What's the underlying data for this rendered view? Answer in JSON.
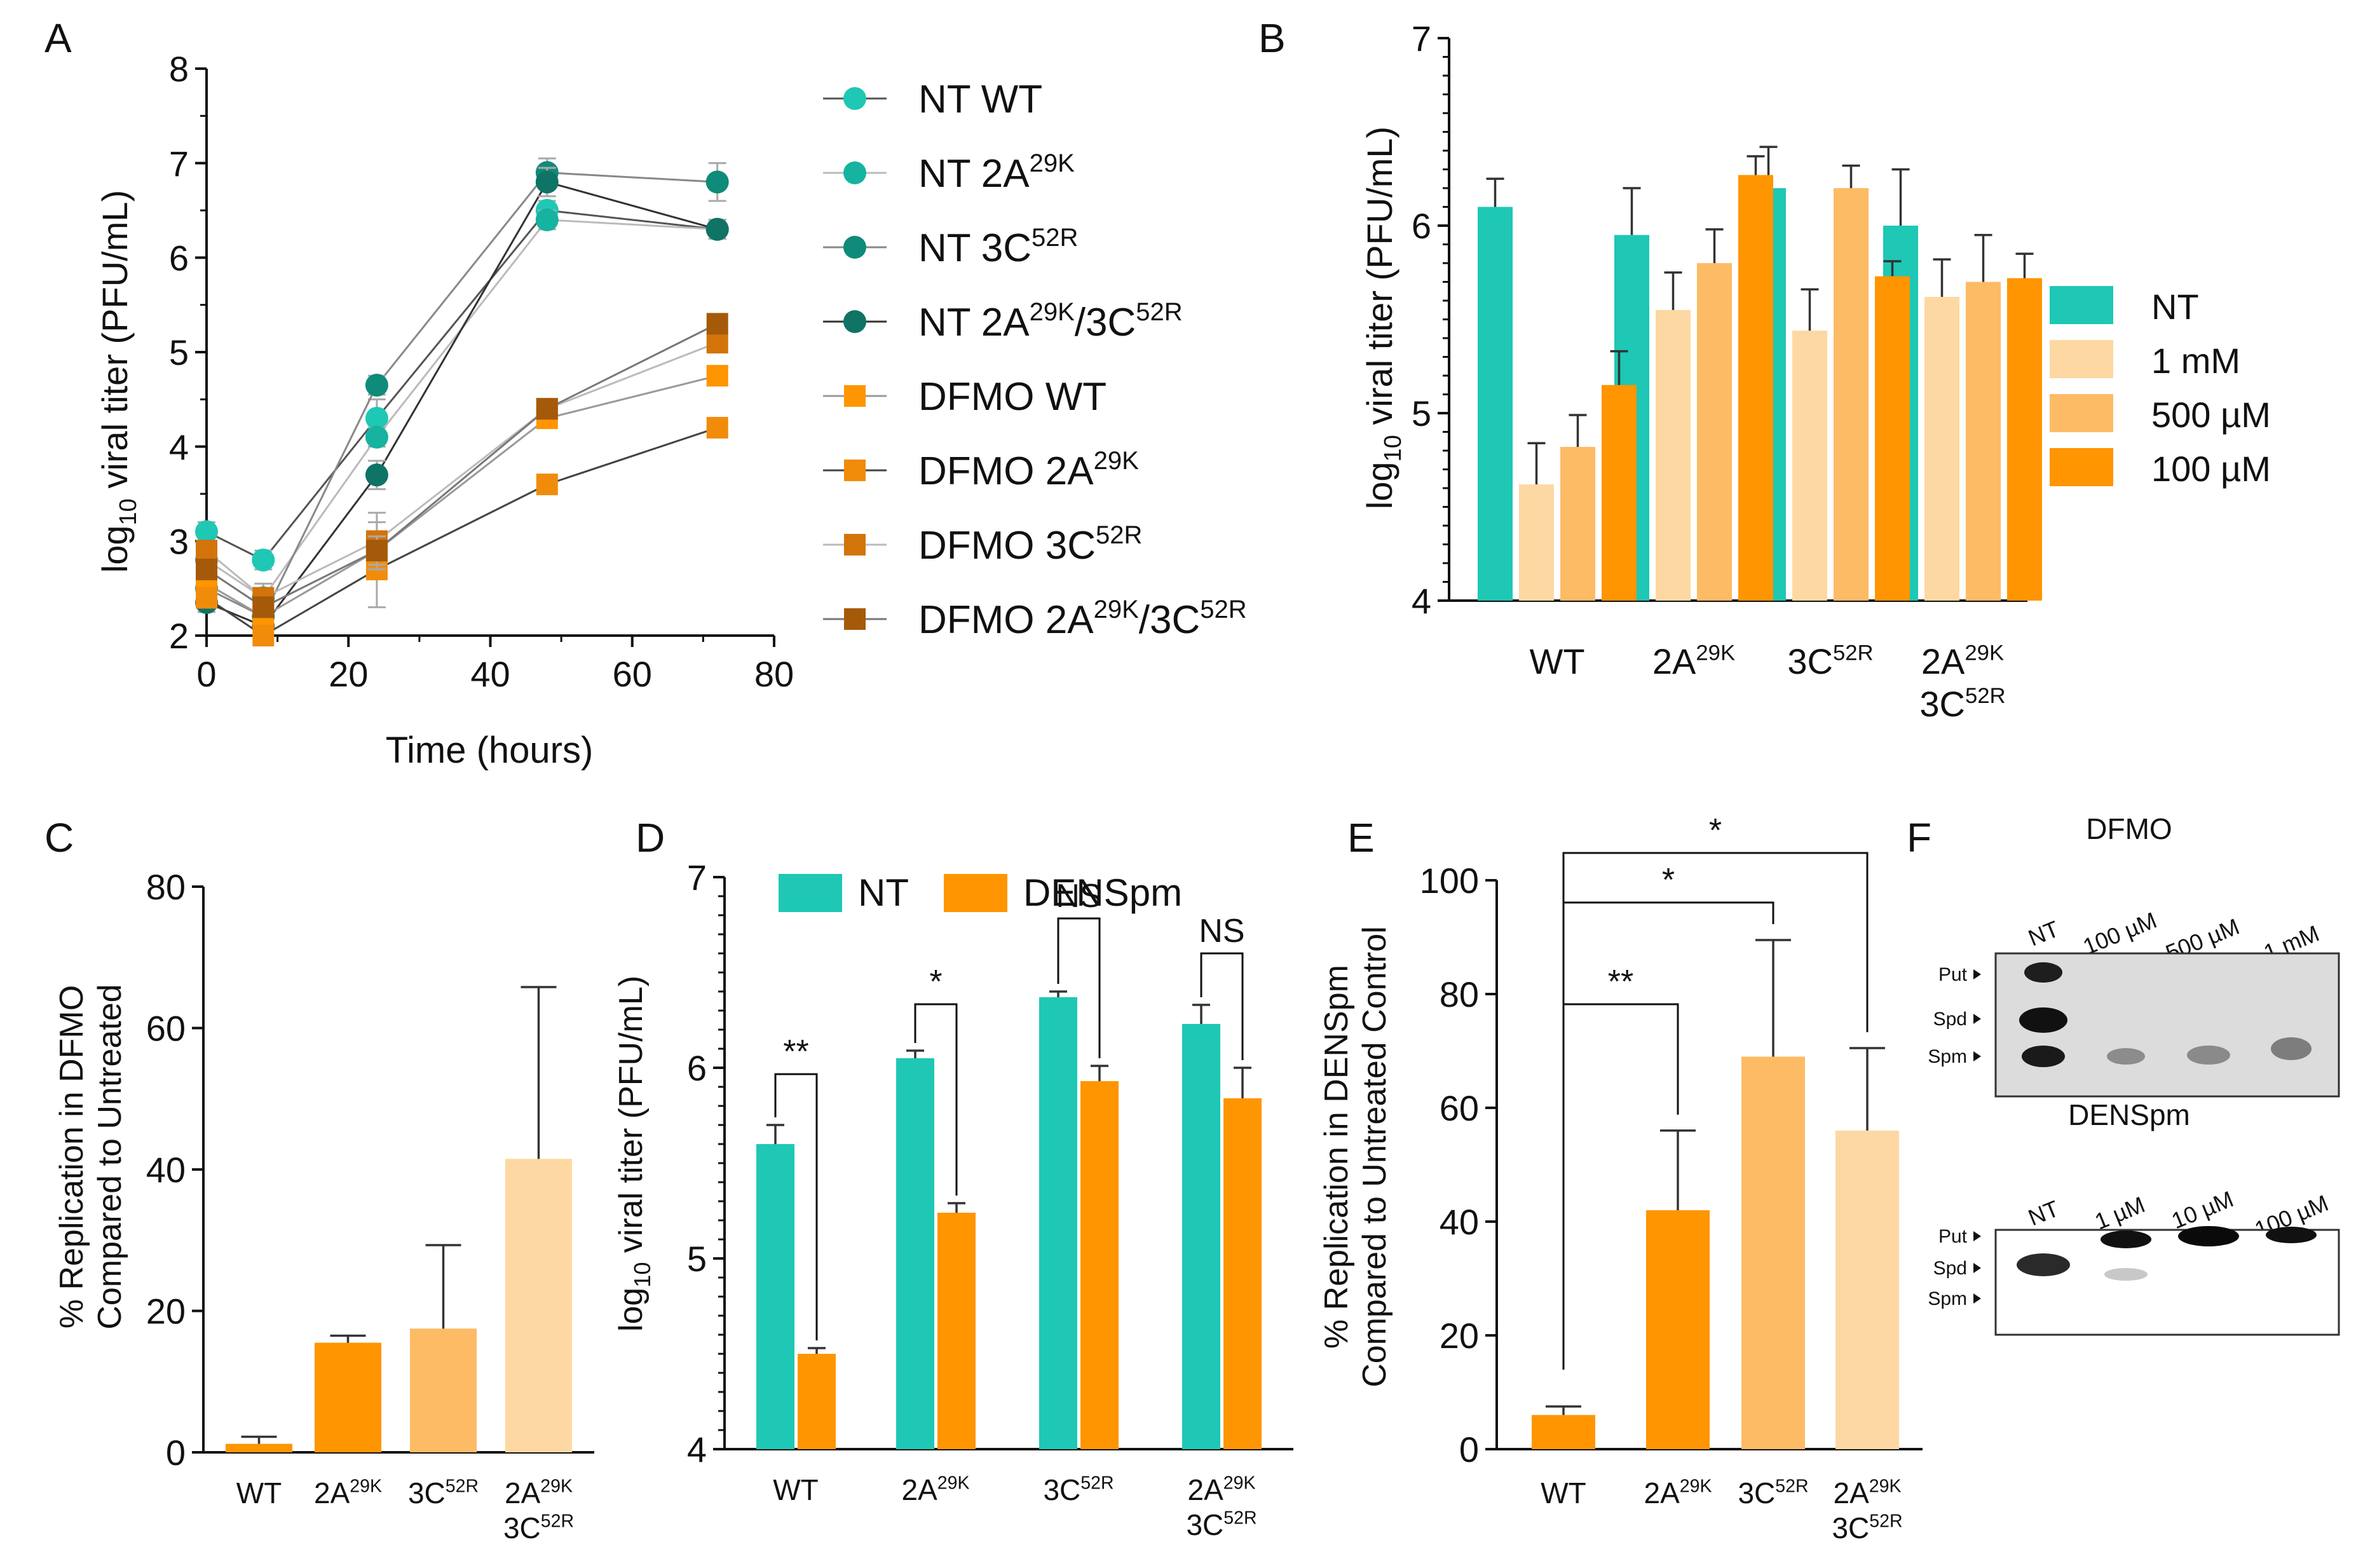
{
  "colors": {
    "teal": "#1ec8b4",
    "teal_mid": "#15b3a0",
    "teal_dark": "#108a7a",
    "teal_darker": "#0f7366",
    "orange": "#ff9500",
    "orange_mid": "#f08c0a",
    "orange_dark": "#d2740a",
    "brown": "#a55a0a",
    "light1": "#fdd8a2",
    "light2": "#fdbb65",
    "gray_line": "#b4b4b4"
  },
  "chart_data": [
    {
      "panel": "A",
      "type": "line",
      "title": "",
      "xlabel": "Time (hours)",
      "ylabel": "log10 viral titer (PFU/mL)",
      "xlim": [
        0,
        80
      ],
      "ylim": [
        2,
        8
      ],
      "xticks": [
        "0",
        "20",
        "40",
        "60",
        "80"
      ],
      "yticks": [
        "2",
        "3",
        "4",
        "5",
        "6",
        "7",
        "8"
      ],
      "x": [
        0,
        8,
        24,
        48,
        72
      ],
      "series": [
        {
          "name": "NT WT",
          "values": [
            3.1,
            2.8,
            4.3,
            6.5,
            6.3
          ],
          "errors": [
            0.1,
            0.1,
            0.2,
            0.1,
            0.1
          ],
          "marker": "circle"
        },
        {
          "name": "NT 2A29K",
          "values": [
            2.8,
            2.4,
            4.1,
            6.4,
            6.3
          ],
          "errors": [
            0.1,
            0.15,
            0.1,
            0.1,
            0.1
          ],
          "marker": "circle"
        },
        {
          "name": "NT 3C52R",
          "values": [
            2.5,
            2.2,
            4.65,
            6.9,
            6.8
          ],
          "errors": [
            0.1,
            0.1,
            0.1,
            0.15,
            0.2
          ],
          "marker": "circle"
        },
        {
          "name": "NT 2A29K/3C52R",
          "values": [
            2.35,
            2.1,
            3.7,
            6.8,
            6.3
          ],
          "errors": [
            0.1,
            0.1,
            0.15,
            0.15,
            0.1
          ],
          "marker": "circle"
        },
        {
          "name": "DFMO WT",
          "values": [
            2.55,
            2.2,
            2.9,
            4.3,
            4.75
          ],
          "errors": [
            0.1,
            0.15,
            0.3,
            0.1,
            0.1
          ],
          "marker": "square"
        },
        {
          "name": "DFMO 2A29K",
          "values": [
            2.4,
            2.0,
            2.7,
            3.6,
            4.2
          ],
          "errors": [
            0.1,
            0.1,
            0.4,
            0.1,
            0.1
          ],
          "marker": "square"
        },
        {
          "name": "DFMO 3C52R",
          "values": [
            2.9,
            2.4,
            3.0,
            4.4,
            5.1
          ],
          "errors": [
            0.1,
            0.1,
            0.3,
            0.1,
            0.1
          ],
          "marker": "square"
        },
        {
          "name": "DFMO 2A29K/3C52R",
          "values": [
            2.7,
            2.3,
            2.9,
            4.4,
            5.3
          ],
          "errors": [
            0.1,
            0.1,
            0.15,
            0.1,
            0.1
          ],
          "marker": "square"
        }
      ],
      "legend": [
        {
          "base": "NT WT",
          "sup": "",
          "mid": "",
          "sup2": ""
        },
        {
          "base": "NT 2A",
          "sup": "29K",
          "mid": "",
          "sup2": ""
        },
        {
          "base": "NT 3C",
          "sup": "52R",
          "mid": "",
          "sup2": ""
        },
        {
          "base": "NT 2A",
          "sup": "29K",
          "mid": "/3C",
          "sup2": "52R"
        },
        {
          "base": "DFMO WT",
          "sup": "",
          "mid": "",
          "sup2": ""
        },
        {
          "base": "DFMO 2A",
          "sup": "29K",
          "mid": "",
          "sup2": ""
        },
        {
          "base": "DFMO 3C",
          "sup": "52R",
          "mid": "",
          "sup2": ""
        },
        {
          "base": "DFMO 2A",
          "sup": "29K",
          "mid": "/3C",
          "sup2": "52R"
        }
      ]
    },
    {
      "panel": "B",
      "type": "bar",
      "ylabel": "log10 viral titer (PFU/mL)",
      "ylim": [
        4,
        7
      ],
      "yticks": [
        "4",
        "5",
        "6",
        "7"
      ],
      "categories": [
        "WT",
        "2A29K",
        "3C52R",
        "2A29K 3C52R"
      ],
      "series": [
        {
          "name": "NT",
          "values": [
            6.1,
            5.95,
            6.2,
            6.0
          ],
          "errors": [
            0.15,
            0.25,
            0.22,
            0.3
          ]
        },
        {
          "name": "1 mM",
          "values": [
            4.62,
            5.55,
            5.44,
            5.62
          ],
          "errors": [
            0.22,
            0.2,
            0.22,
            0.2
          ]
        },
        {
          "name": "500  µM",
          "values": [
            4.82,
            5.8,
            6.2,
            5.7
          ],
          "errors": [
            0.17,
            0.18,
            0.12,
            0.25
          ]
        },
        {
          "name": "100 µM",
          "values": [
            5.15,
            6.27,
            5.73,
            5.72
          ],
          "errors": [
            0.18,
            0.1,
            0.08,
            0.13
          ]
        }
      ]
    },
    {
      "panel": "C",
      "type": "bar",
      "ylabel": "% Replication in DFMO Compared to Untreated",
      "ylim": [
        0,
        80
      ],
      "yticks": [
        "0",
        "20",
        "40",
        "60",
        "80"
      ],
      "categories": [
        "WT",
        "2A29K",
        "3C52R",
        "2A29K 3C52R"
      ],
      "values": [
        1.2,
        15.5,
        17.5,
        41.5
      ],
      "errors": [
        1.0,
        1.0,
        11.8,
        24.3
      ]
    },
    {
      "panel": "D",
      "type": "bar",
      "ylabel": "log10 viral titer (PFU/mL)",
      "ylim": [
        4,
        7
      ],
      "yticks": [
        "4",
        "5",
        "6",
        "7"
      ],
      "categories": [
        "WT",
        "2A29K",
        "3C52R",
        "2A29K 3C52R"
      ],
      "series": [
        {
          "name": "NT",
          "values": [
            5.6,
            6.05,
            6.37,
            6.23
          ],
          "errors": [
            0.1,
            0.04,
            0.03,
            0.1
          ]
        },
        {
          "name": "DENSpm",
          "values": [
            4.5,
            5.24,
            5.93,
            5.84
          ],
          "errors": [
            0.03,
            0.05,
            0.08,
            0.16
          ]
        }
      ],
      "significance": [
        "**",
        "*",
        "NS",
        "NS"
      ]
    },
    {
      "panel": "E",
      "type": "bar",
      "ylabel": "% Replication in DENSpm Compared to Untreated Control",
      "ylim": [
        0,
        100
      ],
      "yticks": [
        "0",
        "20",
        "40",
        "60",
        "80",
        "100"
      ],
      "categories": [
        "WT",
        "2A29K",
        "3C52R",
        "2A29K 3C52R"
      ],
      "values": [
        6.0,
        42.0,
        69.0,
        56.0
      ],
      "errors": [
        1.5,
        14.0,
        20.5,
        14.5
      ],
      "significance": [
        "**",
        "*",
        "*"
      ]
    }
  ],
  "panels": {
    "A": "A",
    "B": "B",
    "C": "C",
    "D": "D",
    "E": "E",
    "F": "F"
  },
  "labels": {
    "log": "log",
    "log_sub": "10",
    "titer_rest": " viral titer (PFU/mL)",
    "time": "Time (hours)",
    "c_y1": "% Replication in DFMO",
    "c_y2": "Compared to Untreated",
    "e_y1": "% Replication in DENSpm",
    "e_y2": "Compared to Untreated Control",
    "cat_wt": "WT",
    "cat_2a": "2A",
    "cat_3c": "3C",
    "sup_29k": "29K",
    "sup_52r": "52R"
  },
  "gels": {
    "dfmo": {
      "title": "DFMO",
      "lanes": [
        "NT",
        "100 µM",
        "500  µM",
        "1 mM"
      ],
      "markers": [
        "Put",
        "Spd",
        "Spm"
      ]
    },
    "denspm": {
      "title": "DENSpm",
      "lanes": [
        "NT",
        "1 µM",
        "10 µM",
        "100 µM"
      ],
      "markers": [
        "Put",
        "Spd",
        "Spm"
      ]
    }
  }
}
